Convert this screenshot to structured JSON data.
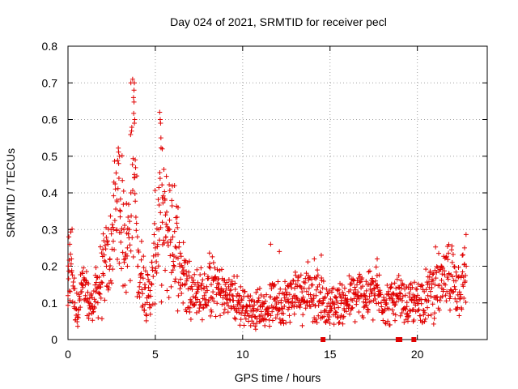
{
  "chart_data": {
    "type": "scatter",
    "title": "Day 024 of 2021, SRMTID for receiver pecl",
    "xlabel": "GPS time / hours",
    "ylabel": "SRMTID / TECUs",
    "xlim": [
      0,
      24
    ],
    "ylim": [
      0,
      0.8
    ],
    "x_ticks": [
      0,
      5,
      10,
      15,
      20
    ],
    "x_tick_labels": [
      "0",
      "5",
      "10",
      "15",
      "20"
    ],
    "y_ticks": [
      0,
      0.1,
      0.2,
      0.3,
      0.4,
      0.5,
      0.6,
      0.7,
      0.8
    ],
    "y_tick_labels": [
      "0",
      "0.1",
      "0.2",
      "0.3",
      "0.4",
      "0.5",
      "0.6",
      "0.7",
      "0.8"
    ],
    "grid": true,
    "marker": "plus",
    "series": [
      {
        "name": "SRMTID",
        "color": "#e00000",
        "x": [
          0.0,
          0.2,
          0.4,
          0.6,
          0.8,
          1.0,
          1.2,
          1.4,
          1.6,
          1.8,
          2.0,
          2.2,
          2.4,
          2.6,
          2.8,
          3.0,
          3.2,
          3.4,
          3.6,
          3.8,
          4.0,
          4.2,
          4.4,
          4.6,
          4.8,
          5.0,
          5.2,
          5.4,
          5.6,
          5.8,
          6.0,
          6.2,
          6.4,
          6.6,
          6.8,
          7.0,
          7.4,
          7.8,
          8.2,
          8.6,
          9.0,
          9.4,
          9.8,
          10.2,
          10.6,
          11.0,
          11.4,
          11.8,
          12.2,
          12.6,
          13.0,
          13.4,
          13.8,
          14.2,
          14.6,
          15.0,
          15.4,
          15.8,
          16.2,
          16.6,
          17.0,
          17.4,
          17.8,
          18.2,
          18.6,
          19.0,
          19.4,
          19.8,
          20.2,
          20.6,
          21.0,
          21.4,
          21.8,
          22.2,
          22.6,
          22.8,
          0.05,
          0.1,
          2.95,
          3.6,
          3.7,
          3.75,
          3.8,
          5.25,
          5.3,
          5.4,
          5.55,
          6.1,
          6.3,
          11.6,
          12.1,
          14.1,
          14.5,
          17.7,
          22.7
        ],
        "y": [
          0.12,
          0.22,
          0.1,
          0.08,
          0.15,
          0.12,
          0.1,
          0.09,
          0.13,
          0.15,
          0.18,
          0.2,
          0.22,
          0.3,
          0.38,
          0.35,
          0.3,
          0.25,
          0.4,
          0.45,
          0.2,
          0.18,
          0.15,
          0.12,
          0.15,
          0.25,
          0.3,
          0.32,
          0.28,
          0.3,
          0.28,
          0.25,
          0.2,
          0.18,
          0.16,
          0.14,
          0.13,
          0.12,
          0.15,
          0.14,
          0.12,
          0.12,
          0.1,
          0.09,
          0.08,
          0.09,
          0.08,
          0.11,
          0.1,
          0.11,
          0.12,
          0.13,
          0.14,
          0.12,
          0.1,
          0.09,
          0.1,
          0.1,
          0.11,
          0.12,
          0.12,
          0.13,
          0.12,
          0.1,
          0.1,
          0.11,
          0.09,
          0.1,
          0.11,
          0.12,
          0.15,
          0.14,
          0.18,
          0.16,
          0.15,
          0.2,
          0.28,
          0.26,
          0.5,
          0.7,
          0.71,
          0.66,
          0.59,
          0.62,
          0.59,
          0.52,
          0.38,
          0.42,
          0.36,
          0.26,
          0.24,
          0.22,
          0.23,
          0.22,
          0.25
        ],
        "zero_points_x": [
          14.6,
          18.9,
          19.0,
          19.8
        ]
      }
    ]
  }
}
